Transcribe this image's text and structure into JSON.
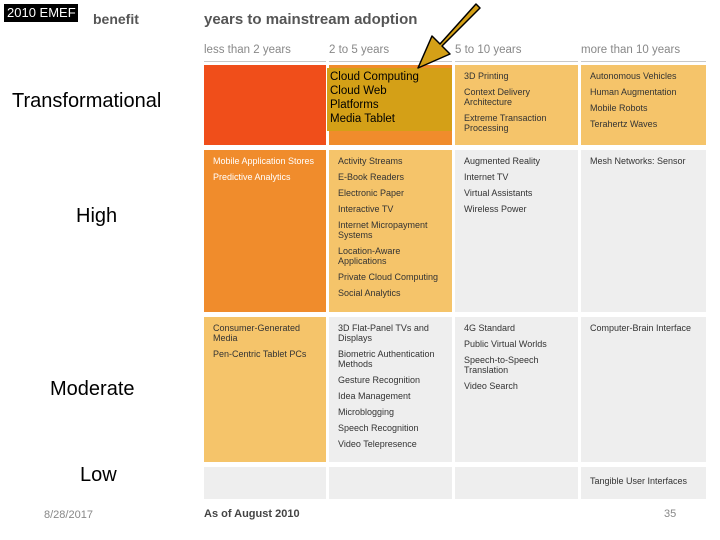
{
  "header": {
    "tag": "2010 EMEF",
    "benefit_label": "benefit",
    "title": "years to mainstream adoption"
  },
  "columns": [
    "less than 2 years",
    "2 to 5 years",
    "5 to 10 years",
    "more than 10 years"
  ],
  "rows": {
    "transformational": "Transformational",
    "high": "High",
    "moderate": "Moderate",
    "low": "Low"
  },
  "callout": {
    "lines": [
      "Cloud Computing",
      "Cloud Web",
      "Platforms",
      "Media Tablet"
    ]
  },
  "cells": {
    "transformational": {
      "c2": [],
      "c3": [
        "3D Printing",
        "Context Delivery Architecture",
        "Extreme Transaction Processing"
      ],
      "c4": [
        "Autonomous Vehicles",
        "Human Augmentation",
        "Mobile Robots",
        "Terahertz Waves"
      ]
    },
    "high": {
      "c1": [
        "Mobile Application Stores",
        "Predictive Analytics"
      ],
      "c2": [
        "Activity Streams",
        "E-Book Readers",
        "Electronic Paper",
        "Interactive TV",
        "Internet Micropayment Systems",
        "Location-Aware Applications",
        "Private Cloud Computing",
        "Social Analytics"
      ],
      "c3": [
        "Augmented Reality",
        "Internet TV",
        "Virtual Assistants",
        "Wireless Power"
      ],
      "c4": [
        "Mesh Networks: Sensor"
      ]
    },
    "moderate": {
      "c1": [
        "Consumer-Generated Media",
        "Pen-Centric Tablet PCs"
      ],
      "c2": [
        "3D Flat-Panel TVs and Displays",
        "Biometric Authentication Methods",
        "Gesture Recognition",
        "Idea Management",
        "Microblogging",
        "Speech Recognition",
        "Video Telepresence"
      ],
      "c3": [
        "4G Standard",
        "Public Virtual Worlds",
        "Speech-to-Speech Translation",
        "Video Search"
      ],
      "c4": [
        "Computer-Brain Interface"
      ]
    },
    "low": {
      "c4": [
        "Tangible User Interfaces"
      ]
    }
  },
  "colors": {
    "accent_dark": "#f04e1a",
    "accent_mid": "#f08c2c",
    "accent_light": "#f5c46a",
    "grey_cell": "#eeeeee",
    "callout": "#d4a017"
  },
  "footer": {
    "date": "8/28/2017",
    "as_of": "As of August 2010",
    "page": "35"
  }
}
